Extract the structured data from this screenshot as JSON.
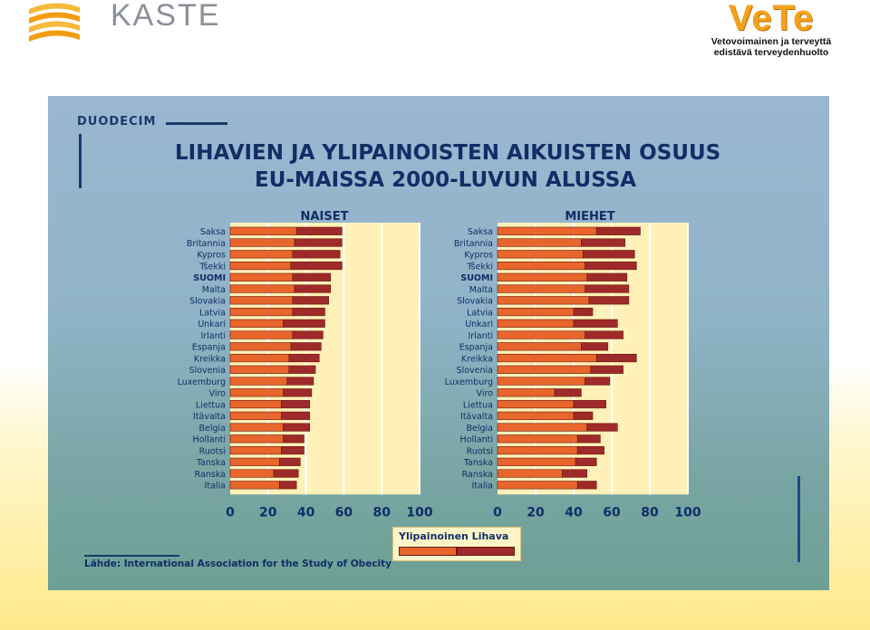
{
  "header": {
    "kaste_logo_text": "KASTE",
    "vete_title": "VeTe",
    "vete_subtitle_line1": "Vetovoimainen ja terveyttä",
    "vete_subtitle_line2": "edistävä terveydenhuolto"
  },
  "slide": {
    "publisher": "DUODECIM",
    "title_line1": "LIHAVIEN JA YLIPAINOISTEN AIKUISTEN OSUUS",
    "title_line2": "EU-MAISSA 2000-LUVUN ALUSSA",
    "legend_label": "Ylipainoinen Lihava",
    "source": "Lähde: International Association for the Study of Obecity",
    "colors": {
      "ylipainoinen": "#e8662c",
      "lihava": "#9e2a2a",
      "plot_bg": "#fff1b8",
      "text": "#0f2f66"
    }
  },
  "chart_data": {
    "type": "bar",
    "stacked": true,
    "orientation": "horizontal",
    "xlim": [
      0,
      100
    ],
    "xticks": [
      0,
      20,
      40,
      60,
      80,
      100
    ],
    "grid": true,
    "categories": [
      "Saksa",
      "Britannia",
      "Kypros",
      "Tšekki",
      "SUOMI",
      "Malta",
      "Slovakia",
      "Latvia",
      "Unkari",
      "Irlanti",
      "Espanja",
      "Kreikka",
      "Slovenia",
      "Luxemburg",
      "Viro",
      "Liettua",
      "Itävalta",
      "Belgia",
      "Hollanti",
      "Ruotsi",
      "Tanska",
      "Ranska",
      "Italia"
    ],
    "panels": [
      {
        "title": "NAISET",
        "series": [
          {
            "name": "Ylipainoinen",
            "values": [
              35,
              34,
              33,
              32,
              33,
              34,
              33,
              33,
              28,
              33,
              32,
              31,
              31,
              30,
              28,
              27,
              27,
              28,
              28,
              27,
              26,
              23,
              26
            ]
          },
          {
            "name": "Lihava",
            "values": [
              24,
              25,
              25,
              27,
              20,
              19,
              19,
              17,
              22,
              16,
              16,
              16,
              14,
              14,
              15,
              15,
              15,
              14,
              11,
              12,
              11,
              13,
              9
            ]
          }
        ]
      },
      {
        "title": "MIEHET",
        "series": [
          {
            "name": "Ylipainoinen",
            "values": [
              52,
              44,
              45,
              46,
              47,
              46,
              48,
              40,
              40,
              46,
              44,
              52,
              49,
              46,
              30,
              40,
              40,
              47,
              42,
              42,
              41,
              34,
              42
            ]
          },
          {
            "name": "Lihava",
            "values": [
              23,
              23,
              27,
              27,
              21,
              23,
              21,
              10,
              23,
              20,
              14,
              21,
              17,
              13,
              14,
              17,
              10,
              16,
              12,
              14,
              11,
              13,
              10
            ]
          }
        ]
      }
    ]
  }
}
